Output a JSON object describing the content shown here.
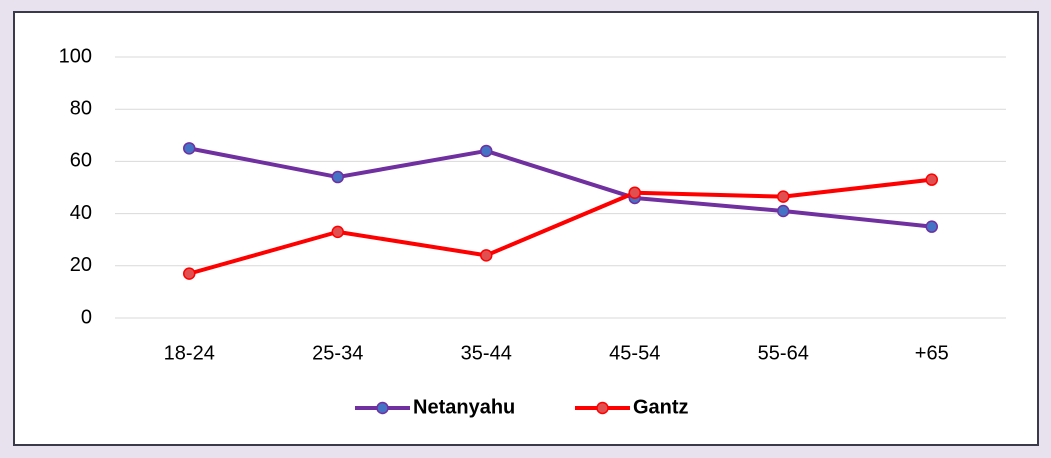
{
  "chart_data": {
    "type": "line",
    "categories": [
      "18-24",
      "25-34",
      "35-44",
      "45-54",
      "55-64",
      "+65"
    ],
    "series": [
      {
        "name": "Netanyahu",
        "color": "#7030a0",
        "marker_color": "#4472c4",
        "values": [
          65,
          54,
          64,
          46,
          41,
          35
        ]
      },
      {
        "name": "Gantz",
        "color": "#ff0000",
        "marker_color": "#e05050",
        "values": [
          17,
          33,
          24,
          48,
          46.5,
          53
        ]
      }
    ],
    "ylim": [
      0,
      100
    ],
    "yticks": [
      0,
      20,
      40,
      60,
      80,
      100
    ],
    "grid": true,
    "legend": "bottom"
  }
}
